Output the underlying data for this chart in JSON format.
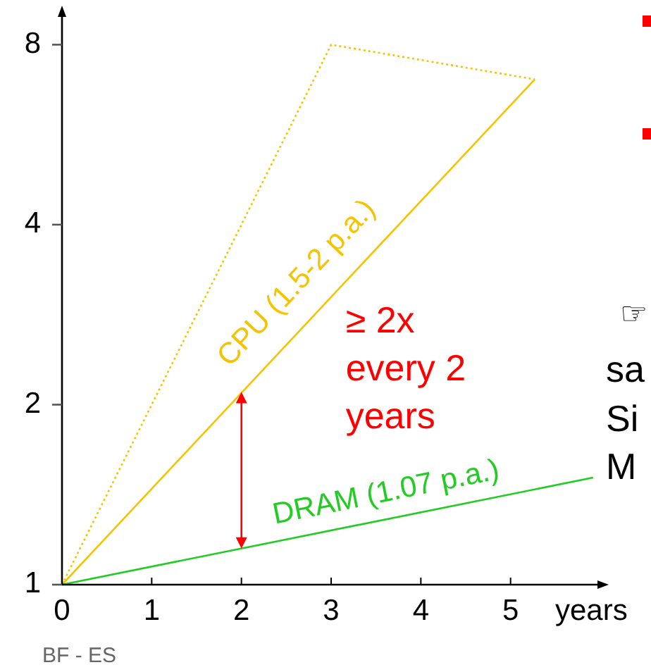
{
  "chart_data": {
    "type": "line",
    "xlabel": "years",
    "log": "y",
    "xlim": [
      0,
      6
    ],
    "ylim": [
      1,
      9
    ],
    "xticks": [
      0,
      1,
      2,
      3,
      4,
      5
    ],
    "yticks": [
      1,
      2,
      4,
      8
    ],
    "grid": false,
    "marker": "none",
    "series": [
      {
        "name": "CPU (1.5-2 p.a.)",
        "color": "#f5c400",
        "line_style": "solid",
        "x": [
          0,
          5.27
        ],
        "values": [
          1,
          7
        ]
      },
      {
        "color": "#f5c400",
        "line_style": "dotted",
        "x": [
          0,
          3,
          5.27
        ],
        "values": [
          1,
          8,
          7
        ]
      },
      {
        "name": "DRAM (1.07 p.a.)",
        "color": "#22cc22",
        "line_style": "solid",
        "x": [
          0,
          5.92
        ],
        "values": [
          1,
          1.51
        ]
      }
    ],
    "annotations": [
      {
        "text": "≥ 2x every 2 years",
        "x": 2,
        "y": 2.1
      },
      "BF - ES",
      "☞",
      "sa",
      "Si",
      "M"
    ]
  }
}
